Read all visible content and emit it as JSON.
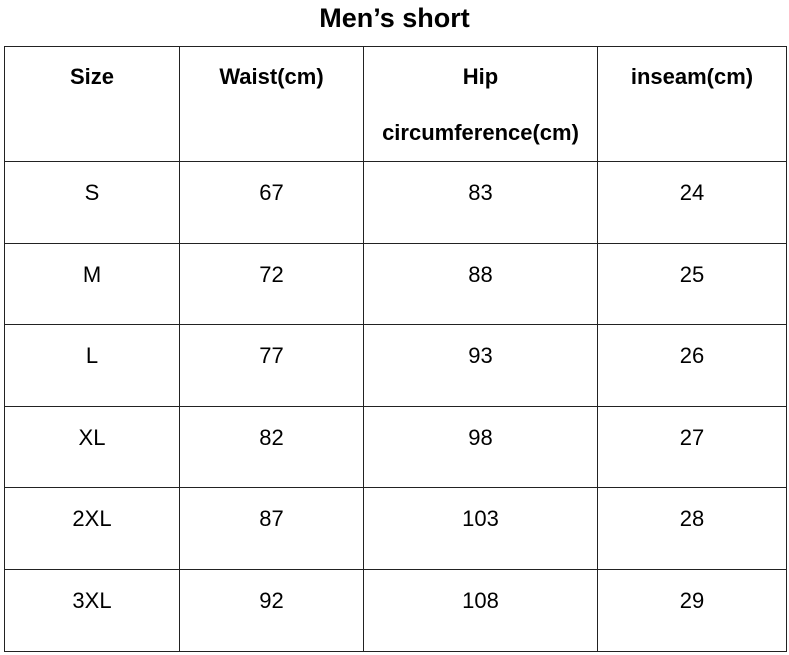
{
  "title": "Men’s short",
  "table": {
    "header": [
      "Size",
      "Waist(cm)",
      "Hip circumference(cm)",
      "inseam(cm)"
    ],
    "rows": [
      [
        "S",
        67,
        83,
        24
      ],
      [
        "M",
        72,
        88,
        25
      ],
      [
        "L",
        77,
        93,
        26
      ],
      [
        "XL",
        82,
        98,
        27
      ],
      [
        "2XL",
        87,
        103,
        28
      ],
      [
        "3XL",
        92,
        108,
        29
      ]
    ]
  }
}
